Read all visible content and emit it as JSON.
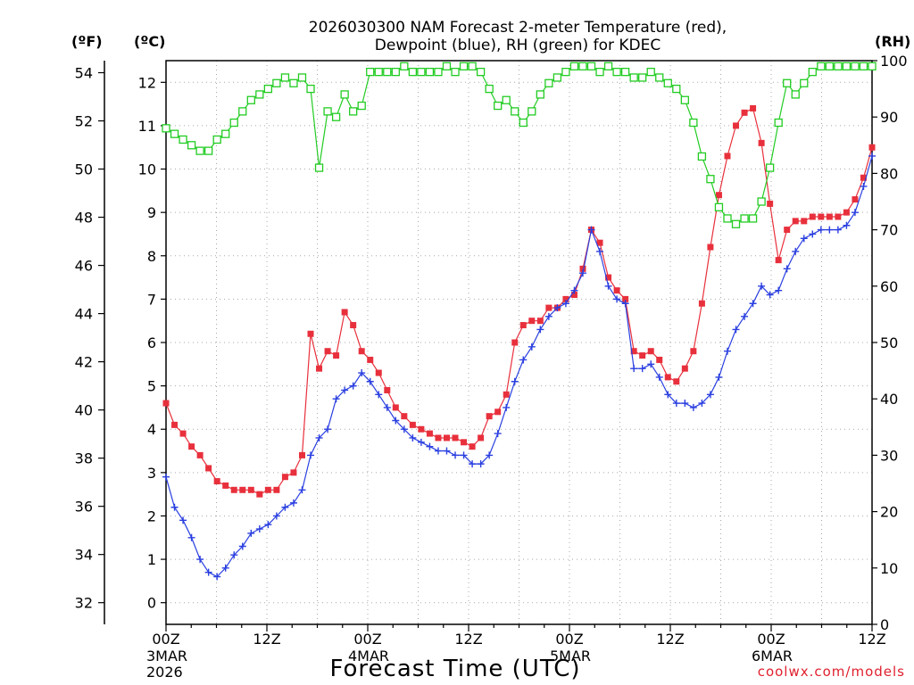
{
  "chart_data": {
    "type": "line",
    "title_line1": "2026030300 NAM Forecast 2-meter Temperature (red),",
    "title_line2": "Dewpoint (blue), RH (green) for KDEC",
    "xlabel": "Forecast Time (UTC)",
    "credit": "coolwx.com/models",
    "unit_f": "(ºF)",
    "unit_c": "(ºC)",
    "unit_rh": "(RH)",
    "x_range_hours": [
      0,
      84
    ],
    "x_ticks": [
      {
        "h": 0,
        "label": "00Z",
        "sub1": "3MAR",
        "sub2": "2026"
      },
      {
        "h": 12,
        "label": "12Z",
        "sub1": "",
        "sub2": ""
      },
      {
        "h": 24,
        "label": "00Z",
        "sub1": "4MAR",
        "sub2": ""
      },
      {
        "h": 36,
        "label": "12Z",
        "sub1": "",
        "sub2": ""
      },
      {
        "h": 48,
        "label": "00Z",
        "sub1": "5MAR",
        "sub2": ""
      },
      {
        "h": 60,
        "label": "12Z",
        "sub1": "",
        "sub2": ""
      },
      {
        "h": 72,
        "label": "00Z",
        "sub1": "6MAR",
        "sub2": ""
      },
      {
        "h": 84,
        "label": "12Z",
        "sub1": "",
        "sub2": ""
      }
    ],
    "ylim_c": [
      -0.5,
      12.5
    ],
    "yticks_c": [
      0,
      1,
      2,
      3,
      4,
      5,
      6,
      7,
      8,
      9,
      10,
      11,
      12
    ],
    "yticks_f": [
      32,
      34,
      36,
      38,
      40,
      42,
      44,
      46,
      48,
      50,
      52,
      54
    ],
    "ylim_rh": [
      0,
      100
    ],
    "yticks_rh": [
      0,
      10,
      20,
      30,
      40,
      50,
      60,
      70,
      80,
      90,
      100
    ],
    "grid": true,
    "series": [
      {
        "name": "Temperature",
        "color": "#e8303c",
        "marker": "filled-square",
        "unit": "C",
        "values": [
          4.6,
          4.1,
          3.9,
          3.6,
          3.4,
          3.1,
          2.8,
          2.7,
          2.6,
          2.6,
          2.6,
          2.5,
          2.6,
          2.6,
          2.9,
          3.0,
          3.4,
          6.2,
          5.4,
          5.8,
          5.7,
          6.7,
          6.4,
          5.8,
          5.6,
          5.3,
          4.9,
          4.5,
          4.3,
          4.1,
          4.0,
          3.9,
          3.8,
          3.8,
          3.8,
          3.7,
          3.6,
          3.8,
          4.3,
          4.4,
          4.8,
          6.0,
          6.4,
          6.5,
          6.5,
          6.8,
          6.8,
          7.0,
          7.1,
          7.7,
          8.6,
          8.3,
          7.5,
          7.2,
          7.0,
          5.8,
          5.7,
          5.8,
          5.6,
          5.2,
          5.1,
          5.4,
          5.8,
          6.9,
          8.2,
          9.4,
          10.3,
          11.0,
          11.3,
          11.4,
          10.6,
          9.2,
          7.9,
          8.6,
          8.8,
          8.8,
          8.9,
          8.9,
          8.9,
          8.9,
          9.0,
          9.3,
          9.8,
          10.5
        ]
      },
      {
        "name": "Dewpoint",
        "color": "#2a3fe0",
        "marker": "plus",
        "unit": "C",
        "values": [
          2.9,
          2.2,
          1.9,
          1.5,
          1.0,
          0.7,
          0.6,
          0.8,
          1.1,
          1.3,
          1.6,
          1.7,
          1.8,
          2.0,
          2.2,
          2.3,
          2.6,
          3.4,
          3.8,
          4.0,
          4.7,
          4.9,
          5.0,
          5.3,
          5.1,
          4.8,
          4.5,
          4.2,
          4.0,
          3.8,
          3.7,
          3.6,
          3.5,
          3.5,
          3.4,
          3.4,
          3.2,
          3.2,
          3.4,
          3.9,
          4.5,
          5.1,
          5.6,
          5.9,
          6.3,
          6.6,
          6.8,
          6.9,
          7.2,
          7.6,
          8.6,
          8.1,
          7.3,
          7.0,
          6.9,
          5.4,
          5.4,
          5.5,
          5.2,
          4.8,
          4.6,
          4.6,
          4.5,
          4.6,
          4.8,
          5.2,
          5.8,
          6.3,
          6.6,
          6.9,
          7.3,
          7.1,
          7.2,
          7.7,
          8.1,
          8.4,
          8.5,
          8.6,
          8.6,
          8.6,
          8.7,
          9.0,
          9.6,
          10.3
        ]
      },
      {
        "name": "RH",
        "color": "#22cc22",
        "marker": "open-square",
        "unit": "RH",
        "values": [
          88,
          87,
          86,
          85,
          84,
          84,
          86,
          87,
          89,
          91,
          93,
          94,
          95,
          96,
          97,
          96,
          97,
          95,
          81,
          91,
          90,
          94,
          91,
          92,
          98,
          98,
          98,
          98,
          99,
          98,
          98,
          98,
          98,
          99,
          98,
          99,
          99,
          98,
          95,
          92,
          93,
          91,
          89,
          91,
          94,
          96,
          97,
          98,
          99,
          99,
          99,
          98,
          99,
          98,
          98,
          97,
          97,
          98,
          97,
          96,
          95,
          93,
          89,
          83,
          79,
          74,
          72,
          71,
          72,
          72,
          75,
          81,
          89,
          96,
          94,
          96,
          98,
          99,
          99,
          99,
          99,
          99,
          99,
          99
        ]
      }
    ]
  }
}
